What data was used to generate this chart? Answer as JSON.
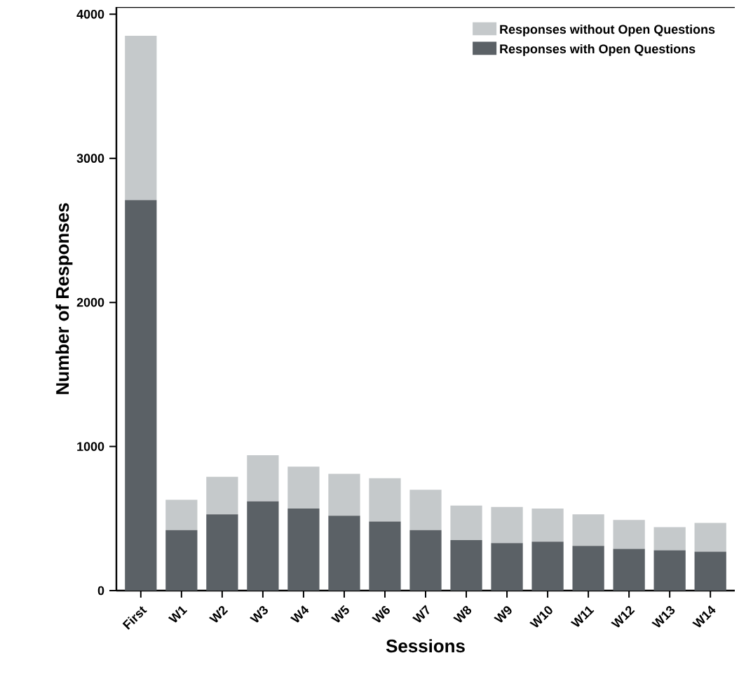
{
  "chart_data": {
    "type": "bar",
    "stacked": true,
    "xlabel": "Sessions",
    "ylabel": "Number of Responses",
    "categories": [
      "First",
      "W1",
      "W2",
      "W3",
      "W4",
      "W5",
      "W6",
      "W7",
      "W8",
      "W9",
      "W10",
      "W11",
      "W12",
      "W13",
      "W14"
    ],
    "series": [
      {
        "name": "Responses with Open Questions",
        "color": "#5b6166",
        "values": [
          2710,
          420,
          530,
          620,
          570,
          520,
          480,
          420,
          350,
          330,
          340,
          310,
          290,
          280,
          270
        ]
      },
      {
        "name": "Responses without Open Questions",
        "color": "#c5c9cb",
        "values": [
          1140,
          210,
          260,
          320,
          290,
          290,
          300,
          280,
          240,
          250,
          230,
          220,
          200,
          160,
          200
        ]
      }
    ],
    "ylim": [
      0,
      4050
    ],
    "yticks": [
      0,
      1000,
      2000,
      3000,
      4000
    ],
    "grid": false,
    "legend": "top right"
  }
}
